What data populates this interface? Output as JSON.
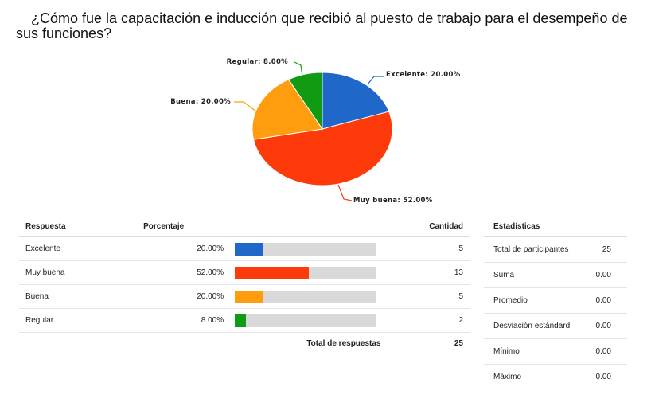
{
  "question": "¿Cómo fue la capacitación e inducción que recibió al puesto de trabajo para el desempeño de sus funciones?",
  "chart_data": {
    "type": "pie",
    "slices": [
      {
        "label": "Excelente: 20.00%",
        "value": 20.0,
        "color": "#1f67c8"
      },
      {
        "label": "Muy buena: 52.00%",
        "value": 52.0,
        "color": "#ff3a0a"
      },
      {
        "label": "Buena: 20.00%",
        "value": 20.0,
        "color": "#ff9d0f"
      },
      {
        "label": "Regular: 8.00%",
        "value": 8.0,
        "color": "#119b12"
      }
    ]
  },
  "table": {
    "headers": {
      "response": "Respuesta",
      "percent": "Porcentaje",
      "count": "Cantidad"
    },
    "rows": [
      {
        "response": "Excelente",
        "percent": "20.00%",
        "fraction": 0.2,
        "count": "5",
        "color": "#1f67c8"
      },
      {
        "response": "Muy buena",
        "percent": "52.00%",
        "fraction": 0.52,
        "count": "13",
        "color": "#ff3a0a"
      },
      {
        "response": "Buena",
        "percent": "20.00%",
        "fraction": 0.2,
        "count": "5",
        "color": "#ff9d0f"
      },
      {
        "response": "Regular",
        "percent": "8.00%",
        "fraction": 0.08,
        "count": "2",
        "color": "#119b12"
      }
    ],
    "total_label": "Total de respuestas",
    "total_value": "25"
  },
  "stats": {
    "title": "Estadísticas",
    "rows": [
      {
        "label": "Total de participantes",
        "value": "25"
      },
      {
        "label": "Suma",
        "value": "0.00"
      },
      {
        "label": "Promedio",
        "value": "0.00"
      },
      {
        "label": "Desviación estándard",
        "value": "0.00"
      },
      {
        "label": "Mínimo",
        "value": "0.00"
      },
      {
        "label": "Máximo",
        "value": "0.00"
      }
    ]
  }
}
